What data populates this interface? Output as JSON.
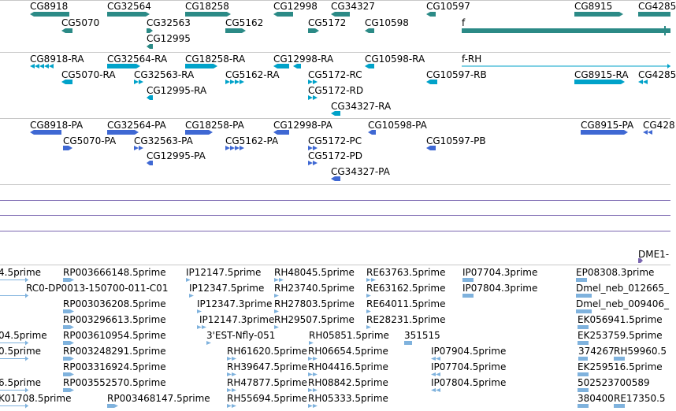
{
  "colors": {
    "gene": "#2b8a86",
    "mrna": "#00a2c9",
    "protein": "#3f68d3",
    "est": "#7fb2dd",
    "divider": "#c8c8c8",
    "purple_line": "#7a66b0",
    "text": "#000000"
  },
  "tracks": {
    "genes": [
      "CG8918",
      "CG32564",
      "CG18258",
      "CG12998",
      "CG34327",
      "CG10597",
      "CG8915",
      "CG4285",
      "CG5070",
      "CG32563",
      "CG5162",
      "CG5172",
      "CG10598",
      "f",
      "CG12995"
    ],
    "transcripts": [
      "CG8918-RA",
      "CG32564-RA",
      "CG18258-RA",
      "CG12998-RA",
      "CG10598-RA",
      "f-RH",
      "CG5070-RA",
      "CG32563-RA",
      "CG5162-RA",
      "CG5172-RC",
      "CG10597-RB",
      "CG8915-RA",
      "CG4285",
      "CG12995-RA",
      "CG5172-RD",
      "CG34327-RA"
    ],
    "proteins": [
      "CG8918-PA",
      "CG32564-PA",
      "CG18258-PA",
      "CG12998-PA",
      "CG10598-PA",
      "CG8915-PA",
      "CG428",
      "CG5070-PA",
      "CG32563-PA",
      "CG5162-PA",
      "CG5172-PC",
      "CG10597-PB",
      "CG12995-PA",
      "CG5172-PD",
      "CG34327-PA"
    ],
    "dme_label": "DME1-",
    "ests": [
      "4.5prime",
      "RP003666148.5prime",
      "IP12147.5prime",
      "RH48045.5prime",
      "RE63763.5prime",
      "IP07704.3prime",
      "EP08308.3prime",
      "RC0-DP0013-150700-011-C01",
      "IP12347.5prime",
      "RH23740.5prime",
      "RE63162.5prime",
      "IP07804.3prime",
      "Dmel_neb_012665_",
      "RP003036208.5prime",
      "IP12347.3prime",
      "RH27803.5prime",
      "RE64011.5prime",
      "Dmel_neb_009406_",
      "RP003296613.5prime",
      "IP12147.3prime",
      "RH29507.5prime",
      "RE28231.5prime",
      "EK056941.5prime",
      "04.5prime",
      "RP003610954.5prime",
      "3'EST-Nfly-051",
      "RH05851.5prime",
      "351515",
      "EK253759.5prime",
      "0.5prime",
      "RP003248291.5prime",
      "RH61620.5prime",
      "RH06654.5prime",
      "IP07904.5prime",
      "374267",
      "RH59960.5",
      "RP003316924.5prime",
      "RH39647.5prime",
      "RH04416.5prime",
      "IP07704.5prime",
      "EK259516.5prime",
      "6.5prime",
      "RP003552570.5prime",
      "RH47877.5prime",
      "RH08842.5prime",
      "IP07804.5prime",
      "502523700589",
      "K01708.5prime",
      "RP003468147.5prime",
      "RH55694.5prime",
      "RH05333.5prime",
      "380400",
      "RE17350.5"
    ]
  }
}
